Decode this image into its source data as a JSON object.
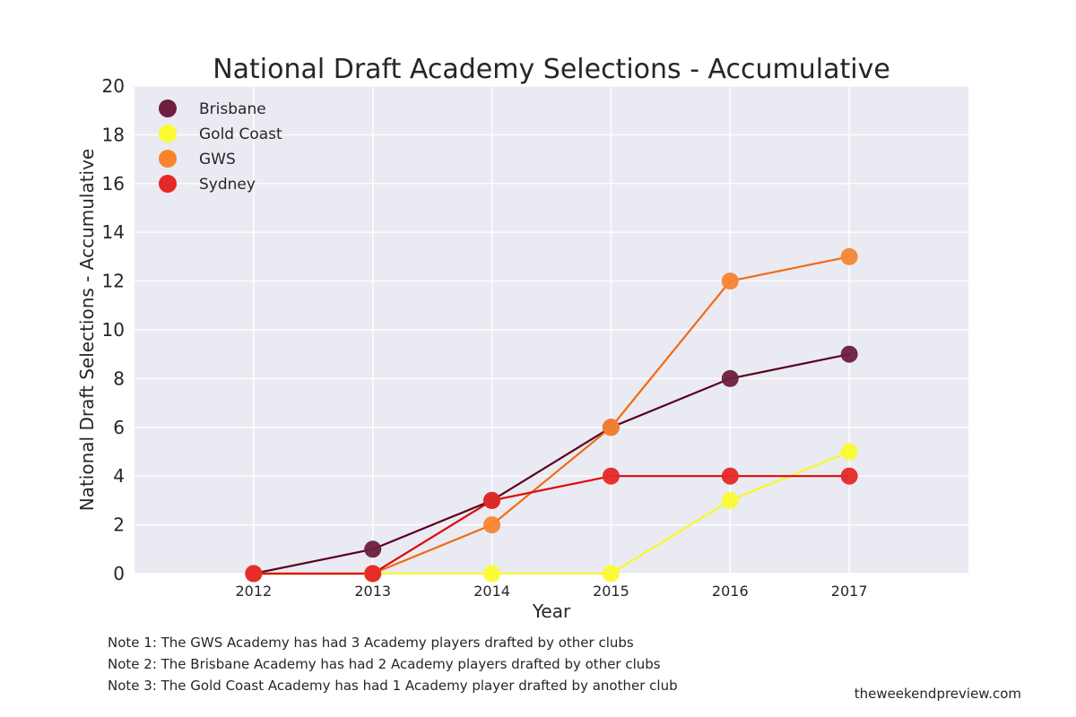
{
  "chart_data": {
    "type": "line",
    "title": "National Draft Academy Selections - Accumulative",
    "xlabel": "Year",
    "ylabel": "National Draft Selections - Accumulative",
    "x": [
      2012,
      2013,
      2014,
      2015,
      2016,
      2017
    ],
    "xlim": [
      2011,
      2018
    ],
    "ylim": [
      0,
      20
    ],
    "yticks": [
      0,
      2,
      4,
      6,
      8,
      10,
      12,
      14,
      16,
      18,
      20
    ],
    "grid": true,
    "legend_position": "top-left",
    "series": [
      {
        "name": "Brisbane",
        "values": [
          0,
          1,
          3,
          6,
          8,
          9
        ],
        "line_color": "#5a0020",
        "marker_color": "#6e1e3e"
      },
      {
        "name": "Gold Coast",
        "values": [
          0,
          0,
          0,
          0,
          3,
          5
        ],
        "line_color": "#f8f82a",
        "marker_color": "#fbfb32"
      },
      {
        "name": "GWS",
        "values": [
          0,
          0,
          2,
          6,
          12,
          13
        ],
        "line_color": "#f26b10",
        "marker_color": "#f78530"
      },
      {
        "name": "Sydney",
        "values": [
          0,
          0,
          3,
          4,
          4,
          4
        ],
        "line_color": "#dc0a0a",
        "marker_color": "#e52828"
      }
    ]
  },
  "notes": [
    "Note 1: The GWS Academy has had 3 Academy players drafted by other clubs",
    "Note 2: The Brisbane Academy has had 2 Academy players drafted by other clubs",
    "Note 3: The Gold Coast Academy has had 1 Academy player drafted by another club"
  ],
  "credit": "theweekendpreview.com",
  "colors": {
    "plot_background": "#eaeaf2",
    "grid": "#ffffff",
    "text": "#262626"
  }
}
